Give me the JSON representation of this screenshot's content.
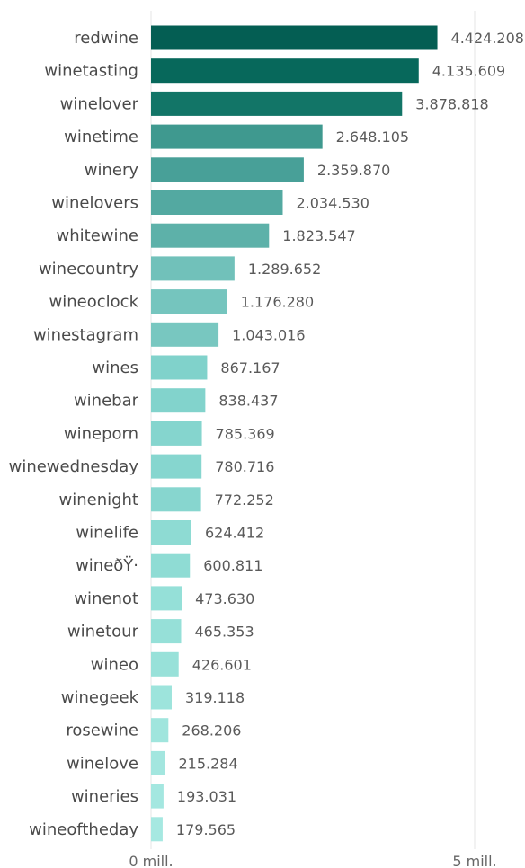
{
  "chart_data": {
    "type": "bar",
    "orientation": "horizontal",
    "categories": [
      "redwine",
      "winetasting",
      "winelover",
      "winetime",
      "winery",
      "winelovers",
      "whitewine",
      "winecountry",
      "wineoclock",
      "winestagram",
      "wines",
      "winebar",
      "wineporn",
      "winewednesday",
      "winenight",
      "winelife",
      "wineðŸ·",
      "winenot",
      "winetour",
      "wineo",
      "winegeek",
      "rosewine",
      "winelove",
      "wineries",
      "wineoftheday"
    ],
    "values": [
      4424208,
      4135609,
      3878818,
      2648105,
      2359870,
      2034530,
      1823547,
      1289652,
      1176280,
      1043016,
      867167,
      838437,
      785369,
      780716,
      772252,
      624412,
      600811,
      473630,
      465353,
      426601,
      319118,
      268206,
      215284,
      193031,
      179565
    ],
    "value_labels": [
      "4.424.208",
      "4.135.609",
      "3.878.818",
      "2.648.105",
      "2.359.870",
      "2.034.530",
      "1.823.547",
      "1.289.652",
      "1.176.280",
      "1.043.016",
      "867.167",
      "838.437",
      "785.369",
      "780.716",
      "772.252",
      "624.412",
      "600.811",
      "473.630",
      "465.353",
      "426.601",
      "319.118",
      "268.206",
      "215.284",
      "193.031",
      "179.565"
    ],
    "colors": [
      "#045e53",
      "#07685b",
      "#127567",
      "#3f998f",
      "#48a098",
      "#53a9a1",
      "#5db1a9",
      "#71c1ba",
      "#75c5be",
      "#78c7c0",
      "#80d2cb",
      "#82d3cc",
      "#85d5ce",
      "#86d6cf",
      "#87d6cf",
      "#8edbd3",
      "#8fdcd4",
      "#95e0d8",
      "#96e0d8",
      "#98e1d9",
      "#9de4dc",
      "#a0e5dd",
      "#a3e6df",
      "#a4e7e0",
      "#a6e8e1"
    ],
    "xlim": [
      0,
      5000000
    ],
    "x_ticks": [
      {
        "value": 0,
        "label": "0 mill."
      },
      {
        "value": 5000000,
        "label": "5 mill."
      }
    ],
    "grid": true,
    "title": "",
    "xlabel": "",
    "ylabel": ""
  }
}
